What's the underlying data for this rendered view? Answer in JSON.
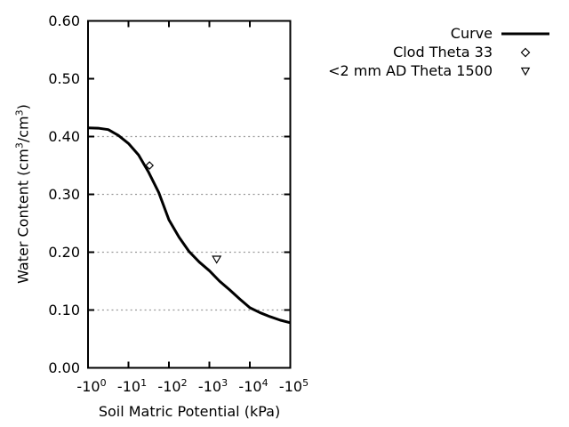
{
  "figure": {
    "background": "#ffffff",
    "text_color": "#000000",
    "grid_color": "#999999",
    "line_color": "#000000"
  },
  "y_axis": {
    "title_segments": [
      "Water Content (cm",
      "3",
      "/cm",
      "3",
      ")"
    ],
    "tick_labels": [
      "0.60",
      "0.50",
      "0.40",
      "0.30",
      "0.20",
      "0.10",
      "0.00"
    ]
  },
  "x_axis": {
    "title": "Soil Matric Potential (kPa)",
    "tick_base": "-10",
    "tick_exponents": [
      "0",
      "1",
      "2",
      "3",
      "4",
      "5"
    ]
  },
  "legend": {
    "items": [
      {
        "label": "Curve",
        "marker": "line"
      },
      {
        "label": "Clod Theta 33",
        "marker": "open-diamond"
      },
      {
        "label": "<2 mm AD Theta 1500",
        "marker": "open-triangle-down"
      }
    ]
  },
  "chart_data": {
    "type": "line",
    "title": "",
    "xlabel": "Soil Matric Potential (kPa)",
    "ylabel": "Water Content (cm3/cm3)",
    "x_scale": "log10 of absolute kPa, axis shows negative values -10^0 to -10^5",
    "xlim_log10_abs": [
      0,
      5
    ],
    "ylim": [
      0,
      0.6
    ],
    "ytick_step": 0.1,
    "grid": "horizontal dotted gridlines at 0.10-0.50",
    "legend_position": "outside top-right",
    "series": [
      {
        "name": "Curve",
        "type": "curve",
        "marker": "none",
        "x_log10_abs_kPa": [
          0,
          0.25,
          0.5,
          0.75,
          1.0,
          1.25,
          1.5,
          1.75,
          2.0,
          2.25,
          2.5,
          2.75,
          3.0,
          3.25,
          3.5,
          3.75,
          4.0,
          4.25,
          4.5,
          4.75,
          5.0
        ],
        "theta": [
          0.415,
          0.4145,
          0.412,
          0.402,
          0.388,
          0.368,
          0.338,
          0.303,
          0.256,
          0.226,
          0.201,
          0.183,
          0.168,
          0.15,
          0.135,
          0.119,
          0.104,
          0.0955,
          0.0885,
          0.0825,
          0.078
        ]
      },
      {
        "name": "Clod Theta 33",
        "type": "scatter",
        "marker": "open-diamond",
        "points": [
          {
            "kPa": -33,
            "x_log10_abs_kPa": 1.52,
            "theta": 0.35
          }
        ]
      },
      {
        "name": "<2 mm AD Theta 1500",
        "type": "scatter",
        "marker": "open-triangle-down",
        "points": [
          {
            "kPa": -1500,
            "x_log10_abs_kPa": 3.18,
            "theta": 0.19
          }
        ]
      }
    ]
  }
}
